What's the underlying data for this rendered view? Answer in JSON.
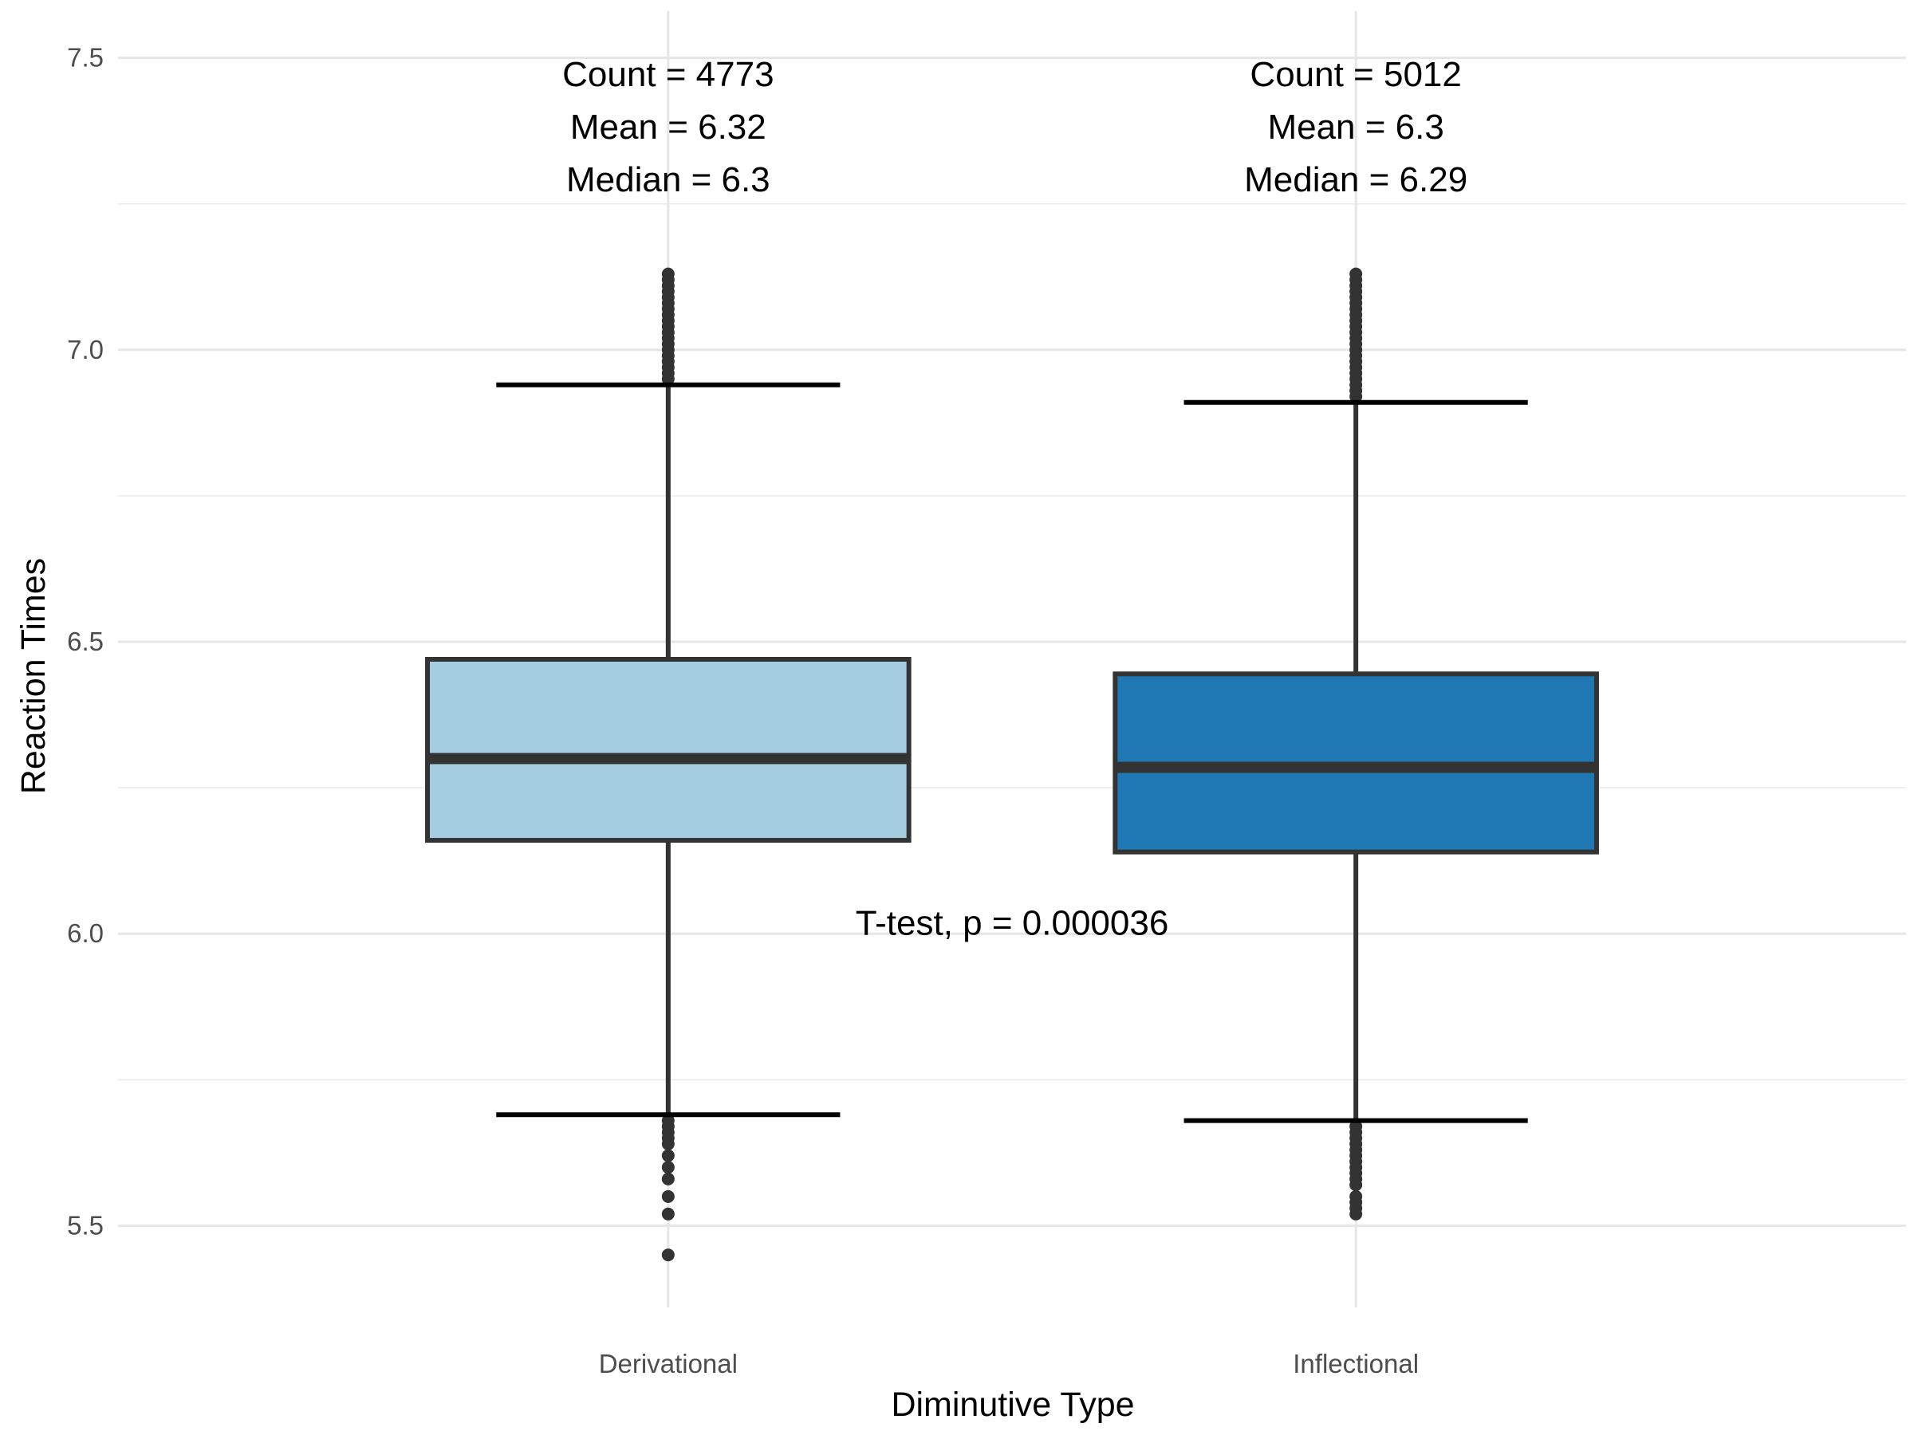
{
  "chart_data": {
    "type": "boxplot",
    "title": "",
    "xlabel": "Diminutive Type",
    "ylabel": "Reaction Times",
    "ylim": [
      5.36,
      7.58
    ],
    "yticks": [
      5.5,
      6.0,
      6.5,
      7.0,
      7.5
    ],
    "ytick_labels": [
      "5.5",
      "6.0",
      "6.5",
      "7.0",
      "7.5"
    ],
    "grid": true,
    "categories": [
      "Derivational",
      "Inflectional"
    ],
    "boxes": [
      {
        "category": "Derivational",
        "fill": "#a6cee3",
        "q1": 6.16,
        "median": 6.3,
        "q3": 6.47,
        "whisker_low": 5.69,
        "whisker_high": 6.94,
        "outliers_high": [
          6.95,
          6.96,
          6.97,
          6.98,
          6.99,
          7.0,
          7.01,
          7.02,
          7.03,
          7.04,
          7.05,
          7.06,
          7.07,
          7.08,
          7.09,
          7.1,
          7.11,
          7.12,
          7.13
        ],
        "outliers_low": [
          5.68,
          5.67,
          5.66,
          5.65,
          5.64,
          5.62,
          5.6,
          5.58,
          5.55,
          5.52,
          5.45
        ],
        "stats_lines": [
          "Count = 4773",
          "Mean = 6.32",
          "Median = 6.3"
        ]
      },
      {
        "category": "Inflectional",
        "fill": "#1f78b4",
        "q1": 6.14,
        "median": 6.285,
        "q3": 6.445,
        "whisker_low": 5.68,
        "whisker_high": 6.91,
        "outliers_high": [
          6.92,
          6.93,
          6.94,
          6.95,
          6.96,
          6.97,
          6.98,
          6.99,
          7.0,
          7.01,
          7.02,
          7.03,
          7.04,
          7.05,
          7.06,
          7.07,
          7.08,
          7.09,
          7.1,
          7.11,
          7.12,
          7.13
        ],
        "outliers_low": [
          5.67,
          5.66,
          5.65,
          5.64,
          5.63,
          5.62,
          5.61,
          5.6,
          5.59,
          5.58,
          5.57,
          5.55,
          5.54,
          5.53,
          5.52
        ],
        "stats_lines": [
          "Count = 5012",
          "Mean = 6.3",
          "Median = 6.29"
        ]
      }
    ],
    "test_annotation": "T-test, p = 0.000036",
    "test_annotation_y": 6.02
  }
}
